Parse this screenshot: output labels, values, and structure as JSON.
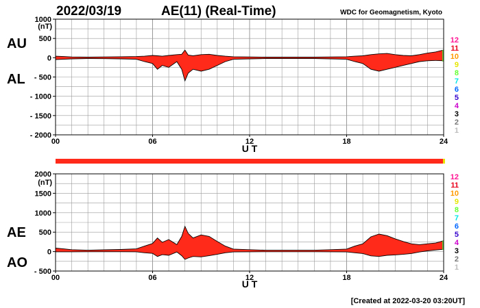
{
  "header": {
    "date": "2022/03/19",
    "title": "AE(11) (Real-Time)",
    "source": "WDC for Geomagnetism, Kyoto"
  },
  "footer": {
    "created": "[Created at 2022-03-20 03:20UT]"
  },
  "colors": {
    "fill": "#ff2a1a",
    "line": "#000000",
    "grid": "#999999",
    "status_bar": "#ff2a1a"
  },
  "station_count_legend": [
    {
      "label": "12",
      "color": "#ff1493"
    },
    {
      "label": "11",
      "color": "#e8001a"
    },
    {
      "label": "10",
      "color": "#ff9900"
    },
    {
      "label": "9",
      "color": "#e6e600"
    },
    {
      "label": "8",
      "color": "#66ff33"
    },
    {
      "label": "7",
      "color": "#00e6e6"
    },
    {
      "label": "6",
      "color": "#0066ff"
    },
    {
      "label": "5",
      "color": "#3300cc"
    },
    {
      "label": "4",
      "color": "#cc00cc"
    },
    {
      "label": "3",
      "color": "#000000"
    },
    {
      "label": "2",
      "color": "#777777"
    },
    {
      "label": "1",
      "color": "#bbbbbb"
    }
  ],
  "chart_data": [
    {
      "type": "area",
      "series_labels": [
        "AU",
        "AL"
      ],
      "unit": "(nT)",
      "xlabel": "U T",
      "xlim": [
        0,
        24
      ],
      "ylim": [
        -2000,
        1000
      ],
      "x_ticks": [
        "00",
        "06",
        "12",
        "18",
        "24"
      ],
      "y_ticks": [
        "1000",
        "500",
        "0",
        "- 500",
        "- 1000",
        "- 1500",
        "- 2000"
      ],
      "x": [
        0,
        0.5,
        1,
        2,
        3,
        4,
        5,
        5.5,
        6,
        6.3,
        6.6,
        7,
        7.5,
        7.8,
        8,
        8.2,
        8.5,
        9,
        9.5,
        10,
        10.5,
        11,
        12,
        13,
        14,
        15,
        16,
        17,
        18,
        18.5,
        19,
        19.5,
        20,
        20.5,
        21,
        21.5,
        22,
        22.5,
        23,
        23.5,
        24
      ],
      "series": [
        {
          "name": "AU",
          "values": [
            40,
            30,
            20,
            15,
            20,
            25,
            30,
            40,
            60,
            50,
            40,
            60,
            80,
            90,
            200,
            70,
            50,
            80,
            90,
            60,
            40,
            25,
            20,
            15,
            15,
            15,
            15,
            20,
            25,
            40,
            50,
            80,
            100,
            110,
            80,
            60,
            50,
            80,
            120,
            150,
            200
          ]
        },
        {
          "name": "AL",
          "values": [
            -50,
            -40,
            -30,
            -20,
            -25,
            -30,
            -40,
            -100,
            -150,
            -300,
            -200,
            -250,
            -100,
            -300,
            -600,
            -400,
            -300,
            -350,
            -300,
            -200,
            -100,
            -40,
            -30,
            -20,
            -20,
            -20,
            -20,
            -30,
            -40,
            -100,
            -150,
            -300,
            -350,
            -300,
            -250,
            -200,
            -150,
            -100,
            -80,
            -70,
            -80
          ]
        }
      ]
    },
    {
      "type": "area",
      "series_labels": [
        "AE",
        "AO"
      ],
      "unit": "(nT)",
      "xlabel": "U T",
      "xlim": [
        0,
        24
      ],
      "ylim": [
        -500,
        2000
      ],
      "x_ticks": [
        "00",
        "06",
        "12",
        "18",
        "24"
      ],
      "y_ticks": [
        "2000",
        "1500",
        "1000",
        "500",
        "0",
        "- 500"
      ],
      "x": [
        0,
        0.5,
        1,
        2,
        3,
        4,
        5,
        5.5,
        6,
        6.3,
        6.6,
        7,
        7.5,
        7.8,
        8,
        8.2,
        8.5,
        9,
        9.5,
        10,
        10.5,
        11,
        12,
        13,
        14,
        15,
        16,
        17,
        18,
        18.5,
        19,
        19.5,
        20,
        20.5,
        21,
        21.5,
        22,
        22.5,
        23,
        23.5,
        24
      ],
      "series": [
        {
          "name": "AE",
          "values": [
            90,
            70,
            50,
            35,
            45,
            55,
            70,
            140,
            210,
            350,
            240,
            310,
            180,
            390,
            650,
            470,
            350,
            430,
            390,
            260,
            140,
            65,
            50,
            35,
            35,
            35,
            35,
            50,
            65,
            140,
            200,
            380,
            450,
            410,
            330,
            260,
            200,
            180,
            200,
            220,
            280
          ]
        },
        {
          "name": "AO",
          "values": [
            -5,
            -5,
            -5,
            -3,
            -3,
            -3,
            -5,
            -30,
            -45,
            -125,
            -80,
            -95,
            -10,
            -105,
            -200,
            -165,
            -125,
            -135,
            -105,
            -70,
            -30,
            -8,
            -5,
            -3,
            -3,
            -3,
            -3,
            -5,
            -8,
            -30,
            -50,
            -110,
            -125,
            -95,
            -85,
            -70,
            -50,
            -10,
            20,
            40,
            60
          ]
        }
      ]
    }
  ]
}
